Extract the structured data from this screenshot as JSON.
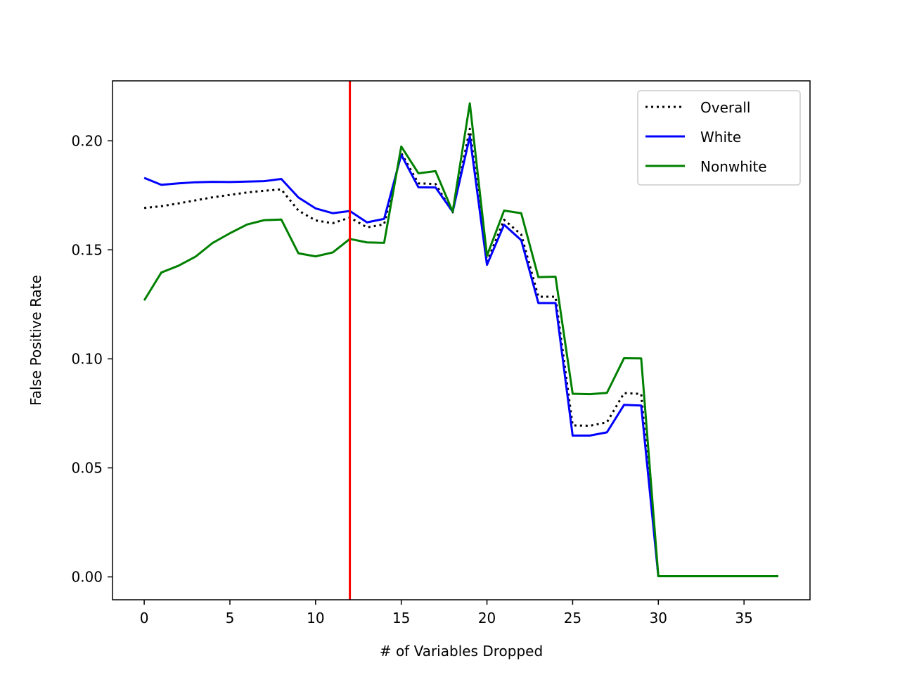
{
  "chart_data": {
    "type": "line",
    "title": "",
    "xlabel": "# of Variables Dropped",
    "ylabel": "False Positive Rate",
    "xlim": [
      -1.85,
      38.85
    ],
    "ylim": [
      -0.0105,
      0.2275
    ],
    "xticks": [
      0,
      5,
      10,
      15,
      20,
      25,
      30,
      35
    ],
    "xtick_labels": [
      "0",
      "5",
      "10",
      "15",
      "20",
      "25",
      "30",
      "35"
    ],
    "yticks": [
      0.0,
      0.05,
      0.1,
      0.15,
      0.2
    ],
    "ytick_labels": [
      "0.00",
      "0.05",
      "0.10",
      "0.15",
      "0.20"
    ],
    "grid": false,
    "legend_position": "top-right",
    "vline": {
      "x": 12,
      "color": "#ff0000"
    },
    "x": [
      0,
      1,
      2,
      3,
      4,
      5,
      6,
      7,
      8,
      9,
      10,
      11,
      12,
      13,
      14,
      15,
      16,
      17,
      18,
      19,
      20,
      21,
      22,
      23,
      24,
      25,
      26,
      27,
      28,
      29,
      30,
      31,
      32,
      33,
      34,
      35,
      36,
      37
    ],
    "series": [
      {
        "name": "Overall",
        "color": "#000000",
        "style": "dotted",
        "values": [
          0.1692,
          0.17,
          0.1713,
          0.1727,
          0.1741,
          0.1752,
          0.1763,
          0.1771,
          0.1777,
          0.168,
          0.1635,
          0.1622,
          0.1648,
          0.1603,
          0.1617,
          0.1944,
          0.1805,
          0.1802,
          0.1672,
          0.2055,
          0.1445,
          0.1638,
          0.157,
          0.1285,
          0.1285,
          0.0695,
          0.0693,
          0.0709,
          0.0843,
          0.0839,
          0.0003,
          0.0003,
          0.0003,
          0.0003,
          0.0003,
          0.0003,
          0.0003,
          0.0003
        ]
      },
      {
        "name": "White",
        "color": "#0000ff",
        "style": "solid",
        "values": [
          0.183,
          0.1798,
          0.1805,
          0.181,
          0.1812,
          0.1811,
          0.1813,
          0.1815,
          0.1825,
          0.174,
          0.169,
          0.1668,
          0.1678,
          0.1626,
          0.1642,
          0.1936,
          0.1787,
          0.1786,
          0.1675,
          0.202,
          0.1431,
          0.1615,
          0.1544,
          0.1256,
          0.1256,
          0.0648,
          0.0648,
          0.0663,
          0.0789,
          0.0786,
          0.0003,
          0.0003,
          0.0003,
          0.0003,
          0.0003,
          0.0003,
          0.0003,
          0.0003
        ]
      },
      {
        "name": "Nonwhite",
        "color": "#008000",
        "style": "solid",
        "values": [
          0.1268,
          0.1396,
          0.1427,
          0.1469,
          0.1532,
          0.1576,
          0.1616,
          0.1636,
          0.1639,
          0.1484,
          0.147,
          0.1488,
          0.155,
          0.1534,
          0.1532,
          0.1974,
          0.1851,
          0.1861,
          0.1675,
          0.2172,
          0.1473,
          0.168,
          0.1668,
          0.1375,
          0.1377,
          0.084,
          0.0838,
          0.0844,
          0.1003,
          0.1002,
          0.0003,
          0.0003,
          0.0003,
          0.0003,
          0.0003,
          0.0003,
          0.0003,
          0.0003
        ]
      }
    ]
  }
}
